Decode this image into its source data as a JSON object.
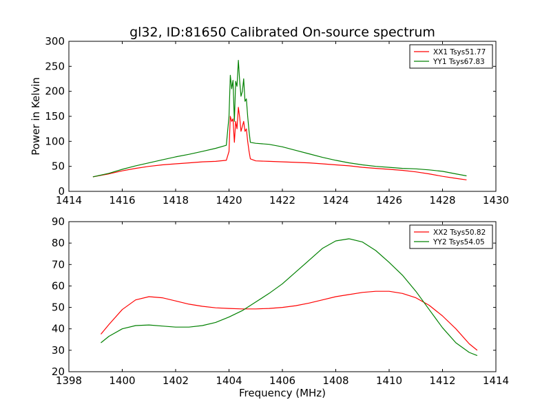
{
  "chart_data": [
    {
      "type": "line",
      "title": "gl32, ID:81650 Calibrated On-source spectrum",
      "xlabel": "",
      "ylabel": "Power in Kelvin",
      "xlim": [
        1414,
        1430
      ],
      "ylim": [
        0,
        300
      ],
      "xticks": [
        "1414",
        "1416",
        "1418",
        "1420",
        "1422",
        "1424",
        "1426",
        "1428",
        "1430"
      ],
      "yticks": [
        "0",
        "50",
        "100",
        "150",
        "200",
        "250",
        "300"
      ],
      "legend_position": "top-right",
      "series": [
        {
          "name": "XX1 Tsys51.77",
          "color": "#ff0000",
          "x": [
            1414.9,
            1415.5,
            1416,
            1416.5,
            1417,
            1417.5,
            1418,
            1418.5,
            1419,
            1419.5,
            1419.9,
            1420.0,
            1420.05,
            1420.1,
            1420.15,
            1420.2,
            1420.25,
            1420.3,
            1420.35,
            1420.4,
            1420.45,
            1420.5,
            1420.55,
            1420.6,
            1420.65,
            1420.7,
            1420.75,
            1420.8,
            1421,
            1421.5,
            1422,
            1422.5,
            1423,
            1423.5,
            1424,
            1424.5,
            1425,
            1425.5,
            1426,
            1426.5,
            1427,
            1427.5,
            1428,
            1428.5,
            1428.9
          ],
          "values": [
            29,
            35,
            41,
            46,
            50,
            53,
            55,
            57,
            59,
            60,
            62,
            80,
            150,
            140,
            145,
            98,
            140,
            125,
            168,
            148,
            120,
            130,
            140,
            120,
            125,
            100,
            80,
            65,
            61,
            60,
            59,
            58,
            57,
            55,
            53,
            51,
            48,
            46,
            44,
            42,
            39,
            35,
            30,
            26,
            23
          ]
        },
        {
          "name": "YY1 Tsys67.83",
          "color": "#008000",
          "x": [
            1414.9,
            1415.5,
            1416,
            1416.5,
            1417,
            1417.5,
            1418,
            1418.5,
            1419,
            1419.5,
            1419.9,
            1420.0,
            1420.05,
            1420.1,
            1420.15,
            1420.2,
            1420.25,
            1420.3,
            1420.35,
            1420.4,
            1420.45,
            1420.5,
            1420.55,
            1420.6,
            1420.65,
            1420.7,
            1420.75,
            1420.8,
            1421,
            1421.5,
            1422,
            1422.5,
            1423,
            1423.5,
            1424,
            1424.5,
            1425,
            1425.5,
            1426,
            1426.5,
            1427,
            1427.5,
            1428,
            1428.5,
            1428.9
          ],
          "values": [
            29,
            36,
            44,
            51,
            57,
            63,
            69,
            74,
            80,
            86,
            92,
            150,
            232,
            205,
            222,
            140,
            220,
            210,
            262,
            220,
            190,
            200,
            225,
            180,
            185,
            150,
            120,
            98,
            96,
            94,
            89,
            82,
            75,
            68,
            62,
            57,
            53,
            50,
            48,
            46,
            45,
            43,
            40,
            35,
            31
          ]
        }
      ]
    },
    {
      "type": "line",
      "title": "",
      "xlabel": "Frequency (MHz)",
      "ylabel": "",
      "xlim": [
        1398,
        1414
      ],
      "ylim": [
        20,
        90
      ],
      "xticks": [
        "1398",
        "1400",
        "1402",
        "1404",
        "1406",
        "1408",
        "1410",
        "1412",
        "1414"
      ],
      "yticks": [
        "20",
        "30",
        "40",
        "50",
        "60",
        "70",
        "80",
        "90"
      ],
      "legend_position": "top-right",
      "series": [
        {
          "name": "XX2 Tsys50.82",
          "color": "#ff0000",
          "x": [
            1399.2,
            1399.5,
            1400,
            1400.5,
            1401,
            1401.5,
            1402,
            1402.5,
            1403,
            1403.5,
            1404,
            1404.5,
            1405,
            1405.5,
            1406,
            1406.5,
            1407,
            1407.5,
            1408,
            1408.5,
            1409,
            1409.5,
            1410,
            1410.5,
            1411,
            1411.5,
            1412,
            1412.5,
            1413,
            1413.3
          ],
          "values": [
            37.5,
            42,
            49,
            53.5,
            55,
            54.5,
            53,
            51.5,
            50.5,
            49.8,
            49.5,
            49.3,
            49.3,
            49.5,
            50,
            50.8,
            52,
            53.5,
            55,
            56,
            57,
            57.5,
            57.5,
            56.5,
            54.5,
            51,
            46,
            40,
            33,
            30
          ]
        },
        {
          "name": "YY2 Tsys54.05",
          "color": "#008000",
          "x": [
            1399.2,
            1399.5,
            1400,
            1400.5,
            1401,
            1401.5,
            1402,
            1402.5,
            1403,
            1403.5,
            1404,
            1404.5,
            1405,
            1405.5,
            1406,
            1406.5,
            1407,
            1407.5,
            1408,
            1408.5,
            1409,
            1409.5,
            1410,
            1410.5,
            1411,
            1411.5,
            1412,
            1412.5,
            1413,
            1413.3
          ],
          "values": [
            33.5,
            36.5,
            40,
            41.5,
            41.8,
            41.3,
            40.8,
            40.8,
            41.5,
            43,
            45.5,
            48.5,
            52.5,
            56.5,
            61,
            66.5,
            72,
            77.5,
            81,
            82,
            80.5,
            76.5,
            71,
            65,
            57.5,
            49,
            40.5,
            33.5,
            29,
            27.5
          ]
        }
      ]
    }
  ]
}
